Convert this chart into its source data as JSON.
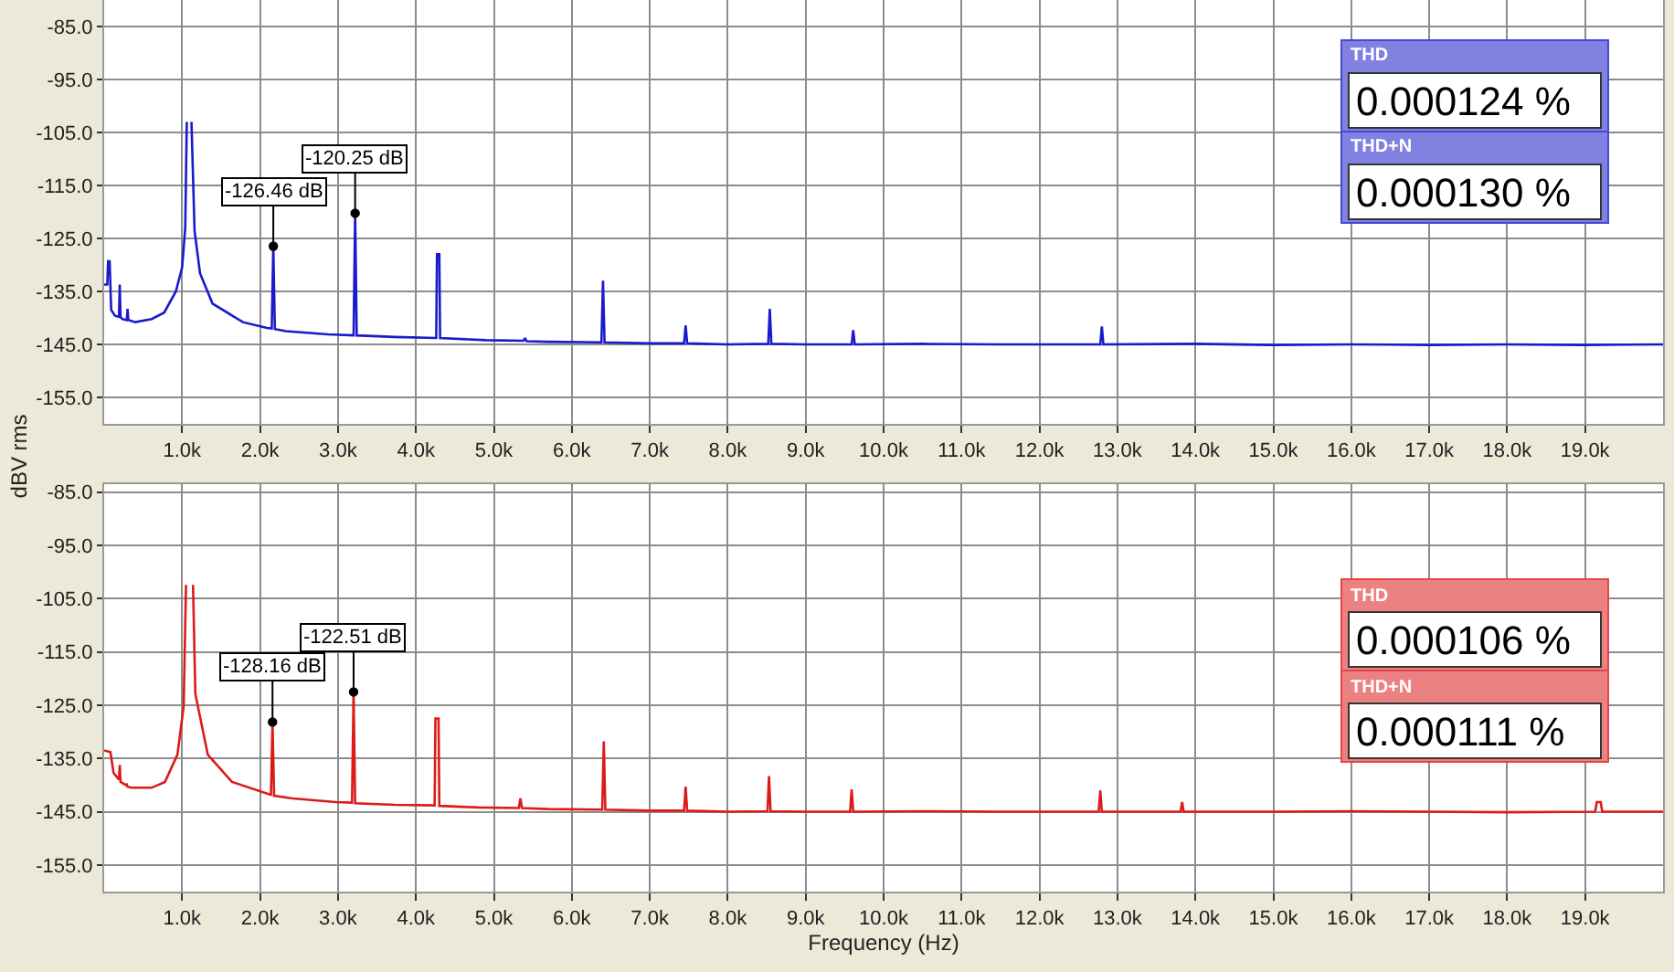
{
  "chart_data": [
    {
      "type": "line",
      "ylabel": "dBV rms",
      "grid": true,
      "x": [
        0,
        40,
        50,
        70,
        90,
        140,
        190,
        200,
        210,
        230,
        290,
        300,
        310,
        400,
        610,
        770,
        920,
        1000,
        1040,
        1060,
        1080,
        1100,
        1120,
        1160,
        1230,
        1390,
        1780,
        2090,
        2150,
        2170,
        2190,
        2330,
        2870,
        3200,
        3220,
        3240,
        3730,
        4260,
        4270,
        4300,
        4310,
        4900,
        5380,
        5400,
        5420,
        5680,
        6380,
        6400,
        6420,
        7000,
        7440,
        7460,
        7480,
        8000,
        8520,
        8540,
        8560,
        9000,
        9590,
        9610,
        9630,
        10500,
        11500,
        12780,
        12800,
        12820,
        14000,
        15000,
        16000,
        17000,
        18000,
        19000,
        20000
      ],
      "series": [
        {
          "color": "#1a1acc",
          "values": [
            -133.7,
            -133.7,
            -129.3,
            -129.3,
            -138.5,
            -139.6,
            -139.8,
            -133.7,
            -139.8,
            -140.2,
            -140.4,
            -138.3,
            -140.4,
            -140.8,
            -140.2,
            -139.0,
            -135.0,
            -130.5,
            -123.0,
            -103.0,
            null,
            null,
            -103.0,
            -123.6,
            -131.6,
            -137.3,
            -140.8,
            -141.9,
            -142.0,
            -126.46,
            -142.1,
            -142.5,
            -143.1,
            -143.3,
            -120.25,
            -143.3,
            -143.6,
            -143.8,
            -128.0,
            -128.0,
            -143.8,
            -144.2,
            -144.3,
            -143.8,
            -144.4,
            -144.5,
            -144.6,
            -133.0,
            -144.6,
            -144.8,
            -144.8,
            -141.4,
            -144.8,
            -145.0,
            -144.9,
            -138.3,
            -144.9,
            -145.0,
            -145.0,
            -142.3,
            -145.0,
            -144.9,
            -145.0,
            -145.0,
            -141.6,
            -145.0,
            -144.9,
            -145.1,
            -145.0,
            -145.1,
            -145.0,
            -145.1,
            -145.0
          ]
        }
      ],
      "xlim": [
        0,
        20000
      ],
      "xticks": [
        {
          "value": 1000,
          "label": "1.0k"
        },
        {
          "value": 2000,
          "label": "2.0k"
        },
        {
          "value": 3000,
          "label": "3.0k"
        },
        {
          "value": 4000,
          "label": "4.0k"
        },
        {
          "value": 5000,
          "label": "5.0k"
        },
        {
          "value": 6000,
          "label": "6.0k"
        },
        {
          "value": 7000,
          "label": "7.0k"
        },
        {
          "value": 8000,
          "label": "8.0k"
        },
        {
          "value": 9000,
          "label": "9.0k"
        },
        {
          "value": 10000,
          "label": "10.0k"
        },
        {
          "value": 11000,
          "label": "11.0k"
        },
        {
          "value": 12000,
          "label": "12.0k"
        },
        {
          "value": 13000,
          "label": "13.0k"
        },
        {
          "value": 14000,
          "label": "14.0k"
        },
        {
          "value": 15000,
          "label": "15.0k"
        },
        {
          "value": 16000,
          "label": "16.0k"
        },
        {
          "value": 17000,
          "label": "17.0k"
        },
        {
          "value": 18000,
          "label": "18.0k"
        },
        {
          "value": 19000,
          "label": "19.0k"
        }
      ],
      "ylim": [
        -160,
        -80
      ],
      "yticks": [
        {
          "value": -85,
          "label": "-85.0"
        },
        {
          "value": -95,
          "label": "-95.0"
        },
        {
          "value": -105,
          "label": "-105.0"
        },
        {
          "value": -115,
          "label": "-115.0"
        },
        {
          "value": -125,
          "label": "-125.0"
        },
        {
          "value": -135,
          "label": "-135.0"
        },
        {
          "value": -145,
          "label": "-145.0"
        },
        {
          "value": -155,
          "label": "-155.0"
        }
      ],
      "annotations": [
        {
          "text": "-126.46 dB",
          "x": 2170,
          "y": -126.46
        },
        {
          "text": "-120.25 dB",
          "x": 3220,
          "y": -120.25
        },
        "THD",
        "0.000124 %",
        "THD+N",
        "0.000130 %"
      ]
    },
    {
      "type": "line",
      "xlabel": "Frequency (Hz)",
      "grid": true,
      "x": [
        0,
        80,
        120,
        190,
        200,
        210,
        280,
        290,
        300,
        350,
        610,
        780,
        940,
        1020,
        1050,
        1080,
        1110,
        1140,
        1170,
        1330,
        1640,
        2110,
        2140,
        2160,
        2180,
        2420,
        2970,
        3180,
        3200,
        3220,
        3730,
        4240,
        4250,
        4290,
        4300,
        4800,
        5320,
        5340,
        5360,
        5700,
        6390,
        6410,
        6430,
        7000,
        7440,
        7460,
        7480,
        8000,
        8510,
        8530,
        8550,
        9000,
        9570,
        9590,
        9610,
        10500,
        11500,
        12760,
        12780,
        12800,
        13810,
        13830,
        13850,
        15000,
        16000,
        17000,
        18000,
        19130,
        19150,
        19200,
        19220,
        20000
      ],
      "series": [
        {
          "color": "#dd1a1a",
          "values": [
            -133.5,
            -133.8,
            -137.7,
            -139.0,
            -136.2,
            -139.4,
            -140.0,
            -139.9,
            -140.3,
            -140.5,
            -140.5,
            -139.4,
            -134.3,
            -125.2,
            -102.4,
            null,
            null,
            -102.4,
            -122.9,
            -134.3,
            -139.4,
            -141.7,
            -141.8,
            -128.16,
            -142.0,
            -142.5,
            -143.2,
            -143.3,
            -122.51,
            -143.4,
            -143.7,
            -143.8,
            -127.5,
            -127.5,
            -143.9,
            -144.2,
            -144.3,
            -142.5,
            -144.3,
            -144.5,
            -144.6,
            -131.8,
            -144.6,
            -144.8,
            -144.8,
            -140.3,
            -144.8,
            -145.0,
            -144.9,
            -138.3,
            -144.9,
            -145.0,
            -145.0,
            -140.8,
            -145.0,
            -144.9,
            -145.0,
            -145.0,
            -141.0,
            -145.0,
            -145.0,
            -143.2,
            -145.0,
            -145.0,
            -144.9,
            -145.0,
            -145.1,
            -145.0,
            -143.2,
            -143.2,
            -145.0,
            -145.0
          ]
        }
      ],
      "xlim": [
        0,
        20000
      ],
      "xticks": [
        {
          "value": 1000,
          "label": "1.0k"
        },
        {
          "value": 2000,
          "label": "2.0k"
        },
        {
          "value": 3000,
          "label": "3.0k"
        },
        {
          "value": 4000,
          "label": "4.0k"
        },
        {
          "value": 5000,
          "label": "5.0k"
        },
        {
          "value": 6000,
          "label": "6.0k"
        },
        {
          "value": 7000,
          "label": "7.0k"
        },
        {
          "value": 8000,
          "label": "8.0k"
        },
        {
          "value": 9000,
          "label": "9.0k"
        },
        {
          "value": 10000,
          "label": "10.0k"
        },
        {
          "value": 11000,
          "label": "11.0k"
        },
        {
          "value": 12000,
          "label": "12.0k"
        },
        {
          "value": 13000,
          "label": "13.0k"
        },
        {
          "value": 14000,
          "label": "14.0k"
        },
        {
          "value": 15000,
          "label": "15.0k"
        },
        {
          "value": 16000,
          "label": "16.0k"
        },
        {
          "value": 17000,
          "label": "17.0k"
        },
        {
          "value": 18000,
          "label": "18.0k"
        },
        {
          "value": 19000,
          "label": "19.0k"
        }
      ],
      "ylim": [
        -160,
        -83.5
      ],
      "yticks": [
        {
          "value": -85,
          "label": "-85.0"
        },
        {
          "value": -95,
          "label": "-95.0"
        },
        {
          "value": -105,
          "label": "-105.0"
        },
        {
          "value": -115,
          "label": "-115.0"
        },
        {
          "value": -125,
          "label": "-125.0"
        },
        {
          "value": -135,
          "label": "-135.0"
        },
        {
          "value": -145,
          "label": "-145.0"
        },
        {
          "value": -155,
          "label": "-155.0"
        }
      ],
      "annotations": [
        {
          "text": "-128.16 dB",
          "x": 2160,
          "y": -128.16
        },
        {
          "text": "-122.51 dB",
          "x": 3200,
          "y": -122.51
        },
        "THD",
        "0.000106 %",
        "THD+N",
        "0.000111 %"
      ]
    }
  ]
}
